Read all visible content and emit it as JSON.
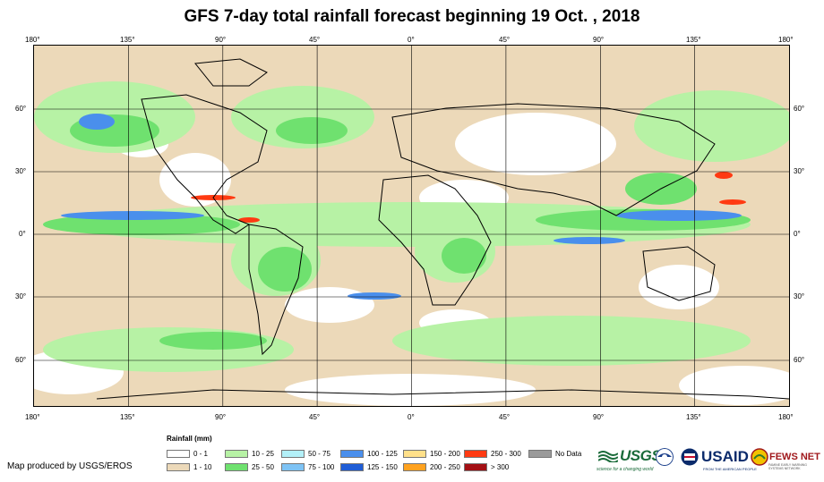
{
  "title": "GFS 7-day total rainfall forecast beginning 19 Oct. , 2018",
  "longitude_labels": [
    "180°",
    "135°",
    "90°",
    "45°",
    "0°",
    "45°",
    "90°",
    "135°",
    "180°"
  ],
  "latitude_labels": [
    "60°",
    "30°",
    "0°",
    "30°",
    "60°"
  ],
  "legend": {
    "title": "Rainfall (mm)",
    "items": [
      {
        "label": "0 - 1",
        "color": "#ffffff"
      },
      {
        "label": "1 - 10",
        "color": "#ecd9b9"
      },
      {
        "label": "10 - 25",
        "color": "#b7f2a5"
      },
      {
        "label": "25 - 50",
        "color": "#6fe16f"
      },
      {
        "label": "50 - 75",
        "color": "#b3f0f8"
      },
      {
        "label": "75 - 100",
        "color": "#7ec3f5"
      },
      {
        "label": "100 - 125",
        "color": "#4a8fec"
      },
      {
        "label": "125 - 150",
        "color": "#1f5dd6"
      },
      {
        "label": "150 - 200",
        "color": "#ffe08a"
      },
      {
        "label": "200 - 250",
        "color": "#ffa21f"
      },
      {
        "label": "250 - 300",
        "color": "#ff3a12"
      },
      {
        "label": "> 300",
        "color": "#a30f14"
      },
      {
        "label": "No Data",
        "color": "#9a9a9a"
      }
    ]
  },
  "credit": "Map produced by USGS/EROS",
  "logos": {
    "usgs": "USGS",
    "usgs_tagline": "science for a changing world",
    "noaa_icon": "noaa-seal-icon",
    "usaid_seal_icon": "usaid-seal-icon",
    "usaid": "USAID",
    "usaid_tagline": "FROM THE AMERICAN PEOPLE",
    "fews": "FEWS NET",
    "fews_tagline": "FAMINE EARLY WARNING SYSTEMS NETWORK"
  }
}
